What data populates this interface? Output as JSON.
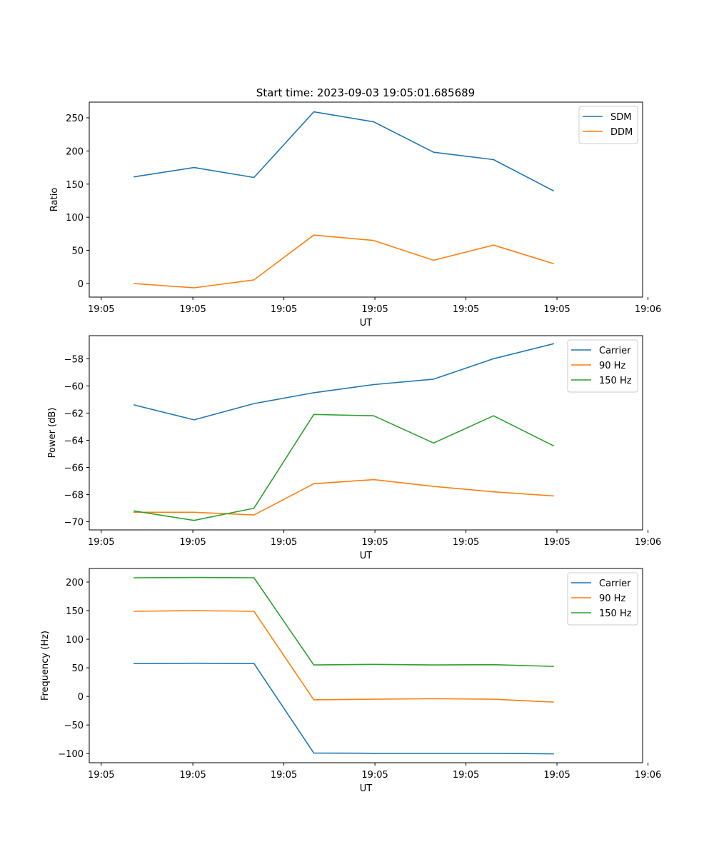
{
  "figure_title": "Start time: 2023-09-03 19:05:01.685689",
  "chart_data": [
    {
      "type": "line",
      "title": "Start time: 2023-09-03 19:05:01.685689",
      "xlabel": "UT",
      "ylabel": "Ratio",
      "x_index": [
        1,
        2,
        3,
        4,
        5,
        6,
        7,
        8
      ],
      "xlim": [
        0.25,
        9.49
      ],
      "xticks": [
        0.45,
        1.98,
        3.5,
        5.02,
        6.54,
        8.06,
        9.58
      ],
      "xtick_labels": [
        "19:05",
        "19:05",
        "19:05",
        "19:05",
        "19:05",
        "19:05",
        "19:06"
      ],
      "ylim": [
        -20.5,
        273.7
      ],
      "yticks": [
        0,
        50,
        100,
        150,
        200,
        250
      ],
      "ytick_labels": [
        "0",
        "50",
        "100",
        "150",
        "200",
        "250"
      ],
      "legend_position": "top-right",
      "series": [
        {
          "name": "SDM",
          "color": "#1f77b4",
          "values": [
            161,
            175,
            160,
            259,
            244,
            198,
            187,
            140
          ]
        },
        {
          "name": "DDM",
          "color": "#ff7f0e",
          "values": [
            0,
            -6.5,
            5.5,
            73,
            65,
            35,
            58,
            30
          ]
        }
      ]
    },
    {
      "type": "line",
      "title": "",
      "xlabel": "UT",
      "ylabel": "Power (dB)",
      "x_index": [
        1,
        2,
        3,
        4,
        5,
        6,
        7,
        8
      ],
      "xlim": [
        0.25,
        9.49
      ],
      "xticks": [
        0.45,
        1.98,
        3.5,
        5.02,
        6.54,
        8.06,
        9.58
      ],
      "xtick_labels": [
        "19:05",
        "19:05",
        "19:05",
        "19:05",
        "19:05",
        "19:05",
        "19:06"
      ],
      "ylim": [
        -70.6,
        -56.3
      ],
      "yticks": [
        -70,
        -68,
        -66,
        -64,
        -62,
        -60,
        -58
      ],
      "ytick_labels": [
        "−70",
        "−68",
        "−66",
        "−64",
        "−62",
        "−60",
        "−58"
      ],
      "legend_position": "top-right",
      "series": [
        {
          "name": "Carrier",
          "color": "#1f77b4",
          "values": [
            -61.4,
            -62.5,
            -61.3,
            -60.5,
            -59.9,
            -59.5,
            -58.0,
            -56.9
          ]
        },
        {
          "name": "90 Hz",
          "color": "#ff7f0e",
          "values": [
            -69.3,
            -69.3,
            -69.5,
            -67.2,
            -66.9,
            -67.4,
            -67.8,
            -68.1
          ]
        },
        {
          "name": "150 Hz",
          "color": "#2ca02c",
          "values": [
            -69.2,
            -69.9,
            -69.0,
            -62.1,
            -62.2,
            -64.2,
            -62.2,
            -64.4
          ]
        }
      ]
    },
    {
      "type": "line",
      "title": "",
      "xlabel": "UT",
      "ylabel": "Frequency (Hz)",
      "x_index": [
        1,
        2,
        3,
        4,
        5,
        6,
        7,
        8
      ],
      "xlim": [
        0.25,
        9.49
      ],
      "xticks": [
        0.45,
        1.98,
        3.5,
        5.02,
        6.54,
        8.06,
        9.58
      ],
      "xtick_labels": [
        "19:05",
        "19:05",
        "19:05",
        "19:05",
        "19:05",
        "19:05",
        "19:06"
      ],
      "ylim": [
        -116,
        223.75
      ],
      "yticks": [
        -100,
        -50,
        0,
        50,
        100,
        150,
        200
      ],
      "ytick_labels": [
        "−100",
        "−50",
        "0",
        "50",
        "100",
        "150",
        "200"
      ],
      "legend_position": "top-right",
      "series": [
        {
          "name": "Carrier",
          "color": "#1f77b4",
          "values": [
            57.5,
            58,
            57.5,
            -99,
            -99.5,
            -99.5,
            -99.5,
            -100.5
          ]
        },
        {
          "name": "90 Hz",
          "color": "#ff7f0e",
          "values": [
            148.8,
            150,
            148.8,
            -6,
            -5,
            -4,
            -5,
            -10
          ]
        },
        {
          "name": "150 Hz",
          "color": "#2ca02c",
          "values": [
            207.5,
            208,
            207.5,
            55,
            56,
            55,
            55.5,
            52.5
          ]
        }
      ]
    }
  ]
}
